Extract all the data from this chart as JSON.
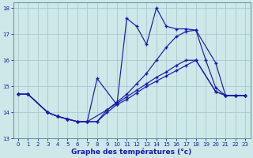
{
  "xlabel": "Graphe des températures (°c)",
  "xlim": [
    -0.5,
    23.5
  ],
  "ylim": [
    13,
    18.2
  ],
  "yticks": [
    13,
    14,
    15,
    16,
    17,
    18
  ],
  "xticks": [
    0,
    1,
    2,
    3,
    4,
    5,
    6,
    7,
    8,
    9,
    10,
    11,
    12,
    13,
    14,
    15,
    16,
    17,
    18,
    19,
    20,
    21,
    22,
    23
  ],
  "background_color": "#cce8e8",
  "grid_color": "#a8c8cc",
  "line_color": "#1a1aaa",
  "line1_x": [
    0,
    1,
    3,
    4,
    5,
    6,
    7,
    8,
    9,
    10,
    11,
    12,
    13,
    14,
    15,
    16,
    17,
    18,
    20,
    21,
    22,
    23
  ],
  "line1_y": [
    14.7,
    14.7,
    14.0,
    13.85,
    13.75,
    13.65,
    13.65,
    13.65,
    14.0,
    14.3,
    14.5,
    14.75,
    15.0,
    15.2,
    15.4,
    15.6,
    15.8,
    16.0,
    14.8,
    14.65,
    14.65,
    14.65
  ],
  "line2_x": [
    0,
    1,
    3,
    4,
    5,
    6,
    7,
    8,
    9,
    10,
    11,
    12,
    13,
    14,
    15,
    16,
    17,
    18,
    20,
    21,
    22,
    23
  ],
  "line2_y": [
    14.7,
    14.7,
    14.0,
    13.85,
    13.75,
    13.65,
    13.65,
    13.65,
    14.1,
    14.4,
    14.7,
    15.1,
    15.5,
    16.0,
    16.5,
    16.9,
    17.1,
    17.15,
    15.9,
    14.65,
    14.65,
    14.65
  ],
  "line3_x": [
    0,
    1,
    3,
    4,
    5,
    6,
    7,
    8,
    10,
    11,
    12,
    13,
    14,
    15,
    16,
    17,
    18,
    19,
    20,
    21,
    22,
    23
  ],
  "line3_y": [
    14.7,
    14.7,
    14.0,
    13.85,
    13.75,
    13.65,
    13.65,
    15.3,
    14.3,
    17.6,
    17.3,
    16.6,
    18.0,
    17.3,
    17.2,
    17.2,
    17.15,
    16.0,
    14.95,
    14.65,
    14.65,
    14.65
  ],
  "line4_x": [
    0,
    1,
    3,
    4,
    5,
    6,
    7,
    9,
    10,
    11,
    12,
    13,
    14,
    15,
    16,
    17,
    18,
    20,
    21,
    22,
    23
  ],
  "line4_y": [
    14.7,
    14.7,
    14.0,
    13.85,
    13.75,
    13.65,
    13.65,
    14.1,
    14.35,
    14.6,
    14.85,
    15.1,
    15.35,
    15.55,
    15.8,
    16.0,
    16.0,
    14.8,
    14.65,
    14.65,
    14.65
  ]
}
